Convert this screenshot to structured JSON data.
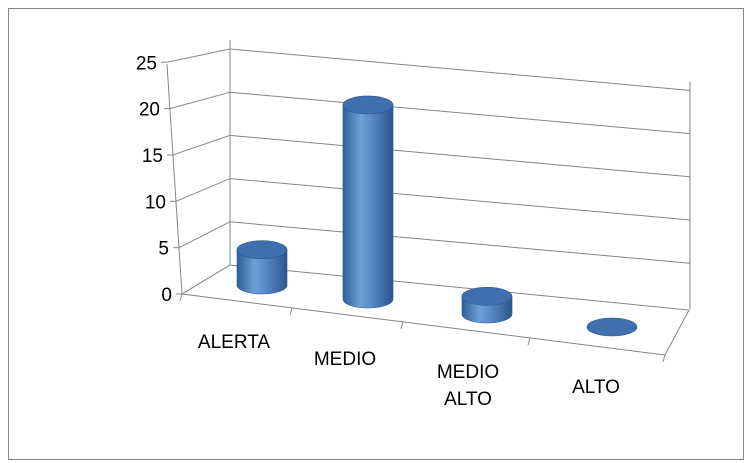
{
  "chart_data": {
    "type": "bar",
    "style": "3d-cylinder",
    "categories": [
      [
        "ALERTA"
      ],
      [
        "MEDIO"
      ],
      [
        "MEDIO",
        "ALTO"
      ],
      [
        "ALTO"
      ]
    ],
    "values": [
      4,
      22,
      2,
      0
    ],
    "y_ticks": [
      "0",
      "5",
      "10",
      "15",
      "20",
      "25"
    ],
    "ylim": [
      0,
      25
    ],
    "grid": true,
    "legend": "none",
    "bar_color": "#4F81BD"
  }
}
